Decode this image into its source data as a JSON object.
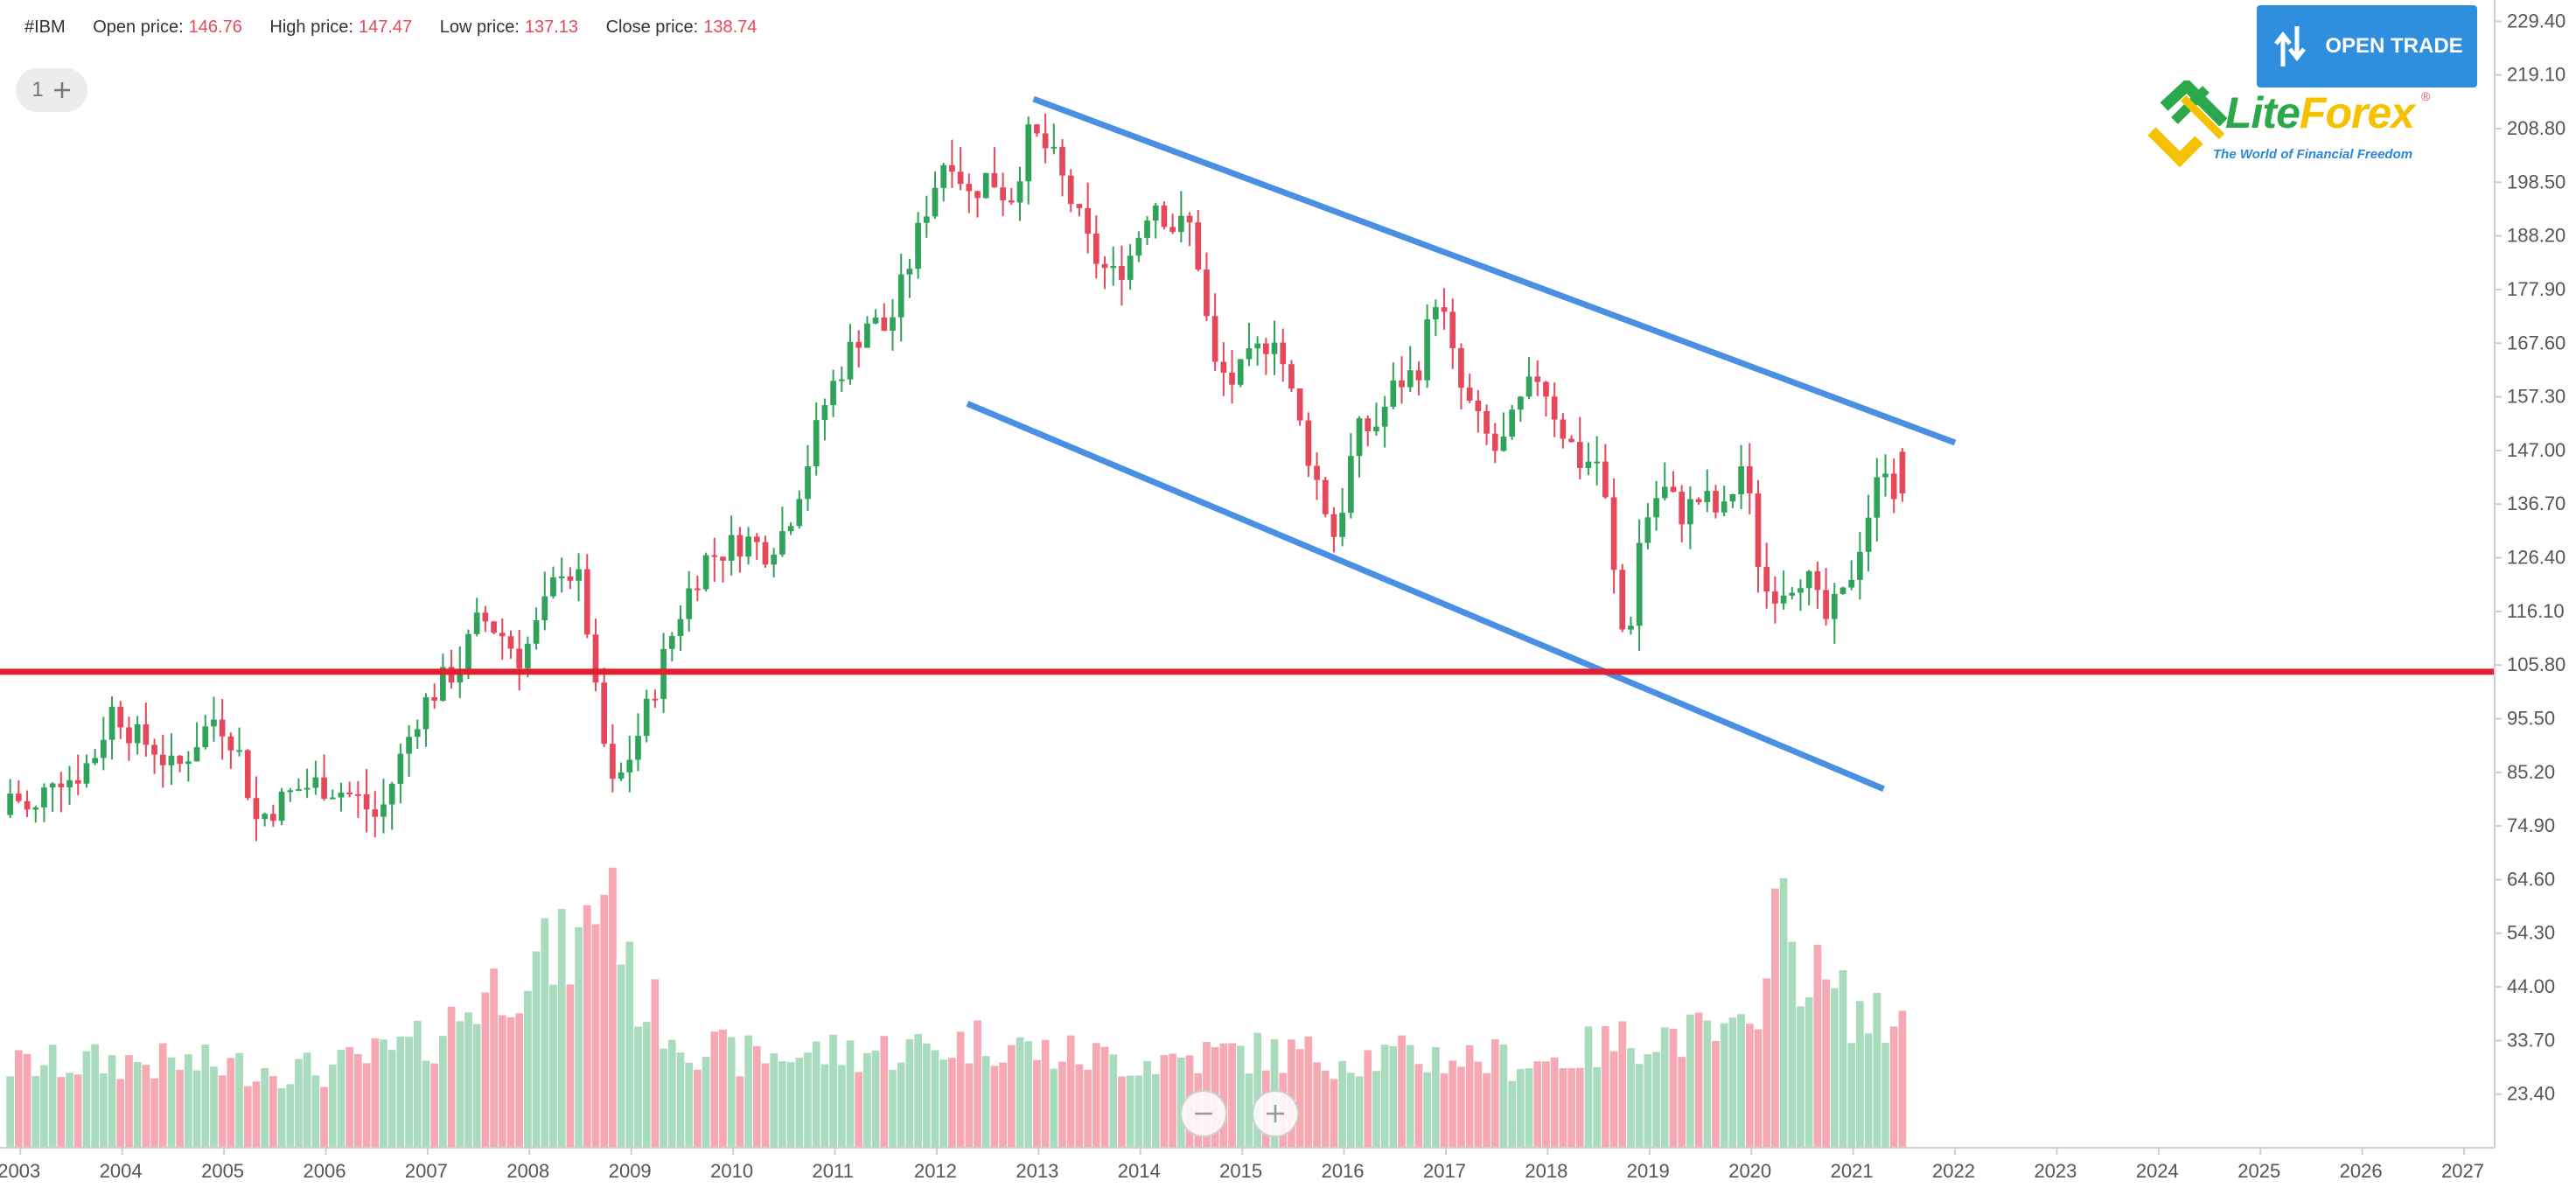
{
  "header": {
    "symbol": "#IBM",
    "open_label": "Open price:",
    "open_value": "146.76",
    "high_label": "High price:",
    "high_value": "147.47",
    "low_label": "Low price:",
    "low_value": "137.13",
    "close_label": "Close price:",
    "close_value": "138.74"
  },
  "layout_button": {
    "count": "1",
    "add_icon": "plus-icon"
  },
  "open_trade": {
    "label": "OPEN TRADE",
    "icon": "up-down-arrows-icon"
  },
  "logo": {
    "name_part1": "Lite",
    "name_part2": "Forex",
    "tagline": "The World of Financial Freedom",
    "registered": "®"
  },
  "zoom": {
    "zoom_out_icon": "minus-icon",
    "zoom_in_icon": "plus-icon"
  },
  "colors": {
    "bull": "#2fa35a",
    "bear": "#e5485b",
    "bull_volume": "#a9dbbd",
    "bear_volume": "#f6a9b2",
    "channel": "#4a90e2",
    "support": "#e0202f",
    "accent": "#2f8fde"
  },
  "chart_data": {
    "type": "candlestick",
    "title": "",
    "xlabel": "",
    "ylabel": "",
    "timeframe": "monthly",
    "x_ticks": [
      "2003",
      "2004",
      "2005",
      "2006",
      "2007",
      "2008",
      "2009",
      "2010",
      "2011",
      "2012",
      "2013",
      "2014",
      "2015",
      "2016",
      "2017",
      "2018",
      "2019",
      "2020",
      "2021",
      "2022",
      "2023",
      "2024",
      "2025",
      "2026",
      "2027"
    ],
    "y_ticks": [
      "229.40",
      "219.10",
      "208.80",
      "198.50",
      "188.20",
      "177.90",
      "167.60",
      "157.30",
      "147.00",
      "136.70",
      "126.40",
      "116.10",
      "105.80",
      "95.50",
      "85.20",
      "74.90",
      "64.60",
      "54.30",
      "44.00",
      "33.70",
      "23.40"
    ],
    "ylim": [
      13.1,
      233.5
    ],
    "xlim": [
      2002.8,
      2027.3
    ],
    "last_candle": {
      "open": 146.76,
      "high": 147.47,
      "low": 137.13,
      "close": 138.74
    },
    "price_path": [
      [
        2002.9,
        77
      ],
      [
        2003.0,
        82
      ],
      [
        2003.2,
        76
      ],
      [
        2003.4,
        85
      ],
      [
        2003.6,
        84
      ],
      [
        2003.8,
        88
      ],
      [
        2004.0,
        98
      ],
      [
        2004.2,
        92
      ],
      [
        2004.4,
        90
      ],
      [
        2004.6,
        85
      ],
      [
        2004.8,
        91
      ],
      [
        2005.0,
        96
      ],
      [
        2005.2,
        91
      ],
      [
        2005.4,
        76
      ],
      [
        2005.6,
        79
      ],
      [
        2005.8,
        82
      ],
      [
        2006.0,
        83
      ],
      [
        2006.2,
        82
      ],
      [
        2006.4,
        80
      ],
      [
        2006.6,
        76
      ],
      [
        2006.8,
        87
      ],
      [
        2007.0,
        97
      ],
      [
        2007.2,
        102
      ],
      [
        2007.4,
        106
      ],
      [
        2007.6,
        115
      ],
      [
        2007.8,
        112
      ],
      [
        2008.0,
        107
      ],
      [
        2008.2,
        115
      ],
      [
        2008.4,
        125
      ],
      [
        2008.6,
        121
      ],
      [
        2008.75,
        97
      ],
      [
        2008.9,
        82
      ],
      [
        2009.0,
        85
      ],
      [
        2009.2,
        95
      ],
      [
        2009.4,
        107
      ],
      [
        2009.6,
        118
      ],
      [
        2009.8,
        126
      ],
      [
        2010.0,
        128
      ],
      [
        2010.2,
        130
      ],
      [
        2010.4,
        128
      ],
      [
        2010.6,
        132
      ],
      [
        2010.8,
        144
      ],
      [
        2011.0,
        157
      ],
      [
        2011.2,
        165
      ],
      [
        2011.4,
        172
      ],
      [
        2011.6,
        170
      ],
      [
        2011.8,
        182
      ],
      [
        2012.0,
        195
      ],
      [
        2012.2,
        205
      ],
      [
        2012.4,
        196
      ],
      [
        2012.6,
        200
      ],
      [
        2012.8,
        195
      ],
      [
        2013.0,
        208
      ],
      [
        2013.2,
        204
      ],
      [
        2013.4,
        195
      ],
      [
        2013.6,
        185
      ],
      [
        2013.8,
        180
      ],
      [
        2014.0,
        185
      ],
      [
        2014.2,
        196
      ],
      [
        2014.4,
        190
      ],
      [
        2014.6,
        190
      ],
      [
        2014.8,
        163
      ],
      [
        2015.0,
        160
      ],
      [
        2015.2,
        165
      ],
      [
        2015.4,
        170
      ],
      [
        2015.6,
        155
      ],
      [
        2015.8,
        142
      ],
      [
        2016.0,
        130
      ],
      [
        2016.2,
        150
      ],
      [
        2016.4,
        152
      ],
      [
        2016.6,
        160
      ],
      [
        2016.8,
        162
      ],
      [
        2017.0,
        178
      ],
      [
        2017.2,
        160
      ],
      [
        2017.4,
        152
      ],
      [
        2017.6,
        146
      ],
      [
        2017.8,
        155
      ],
      [
        2018.0,
        162
      ],
      [
        2018.2,
        152
      ],
      [
        2018.4,
        145
      ],
      [
        2018.6,
        145
      ],
      [
        2018.8,
        112
      ],
      [
        2018.9,
        115
      ],
      [
        2019.0,
        132
      ],
      [
        2019.2,
        140
      ],
      [
        2019.4,
        135
      ],
      [
        2019.6,
        138
      ],
      [
        2019.8,
        134
      ],
      [
        2020.0,
        145
      ],
      [
        2020.2,
        120
      ],
      [
        2020.4,
        121
      ],
      [
        2020.6,
        124
      ],
      [
        2020.8,
        114
      ],
      [
        2021.0,
        119
      ],
      [
        2021.2,
        133
      ],
      [
        2021.4,
        145
      ],
      [
        2021.5,
        138.74
      ]
    ],
    "volume_path": [
      [
        2003.0,
        18
      ],
      [
        2004.0,
        19
      ],
      [
        2005.0,
        18
      ],
      [
        2006.0,
        17
      ],
      [
        2007.0,
        23
      ],
      [
        2007.5,
        33
      ],
      [
        2008.0,
        40
      ],
      [
        2008.5,
        44
      ],
      [
        2008.8,
        63
      ],
      [
        2009.0,
        35
      ],
      [
        2009.5,
        24
      ],
      [
        2010.0,
        20
      ],
      [
        2011.0,
        21
      ],
      [
        2012.0,
        22
      ],
      [
        2012.5,
        24
      ],
      [
        2013.0,
        21
      ],
      [
        2014.0,
        19
      ],
      [
        2015.0,
        21
      ],
      [
        2016.0,
        20
      ],
      [
        2017.0,
        20
      ],
      [
        2018.0,
        19
      ],
      [
        2018.5,
        22
      ],
      [
        2019.0,
        25
      ],
      [
        2020.0,
        24
      ],
      [
        2020.2,
        55
      ],
      [
        2020.5,
        40
      ],
      [
        2021.0,
        30
      ],
      [
        2021.5,
        25
      ]
    ],
    "volume_max_ratio": 0.25,
    "annotations": [
      {
        "type": "trendline",
        "name": "channel-upper",
        "color": "#4a90e2",
        "from": [
          2012.95,
          214.5
        ],
        "to": [
          2022.0,
          148.5
        ]
      },
      {
        "type": "trendline",
        "name": "channel-lower",
        "color": "#4a90e2",
        "from": [
          2012.3,
          156.0
        ],
        "to": [
          2021.3,
          82.0
        ]
      },
      {
        "type": "hline",
        "name": "support",
        "color": "#e0202f",
        "value": 104.5
      }
    ]
  }
}
